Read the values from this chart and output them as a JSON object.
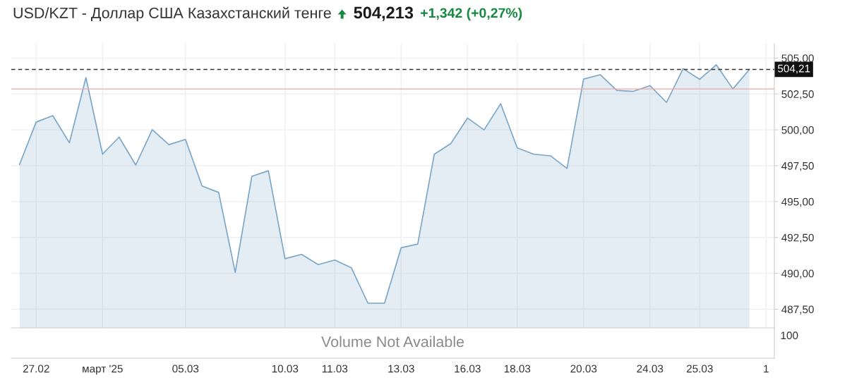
{
  "chart_data": [
    {
      "type": "area",
      "title": "USD/KZT - Доллар США Казахстанский тенге",
      "annotations": [
        "504,213",
        "+1,342 (+0,27%)"
      ],
      "categories": [
        null,
        "27.02",
        null,
        null,
        null,
        "март '25",
        null,
        null,
        null,
        null,
        "05.03",
        null,
        null,
        null,
        null,
        null,
        "10.03",
        null,
        null,
        "11.03",
        null,
        null,
        null,
        "13.03",
        null,
        null,
        null,
        "16.03",
        null,
        null,
        "18.03",
        null,
        null,
        null,
        "20.03",
        null,
        null,
        null,
        "24.03",
        null,
        null,
        "25.03",
        null,
        null,
        null,
        "1"
      ],
      "series": [
        {
          "color": "#7ba6c8",
          "values": [
            497.59,
            500.54,
            500.99,
            499.1,
            503.64,
            498.31,
            499.49,
            497.55,
            500.01,
            498.97,
            499.33,
            496.09,
            495.64,
            490.06,
            496.76,
            497.15,
            491.02,
            491.32,
            490.61,
            490.93,
            490.39,
            487.92,
            487.92,
            491.78,
            492.04,
            498.3,
            499.05,
            500.82,
            500.0,
            501.82,
            498.74,
            498.3,
            498.19,
            497.31,
            503.54,
            503.84,
            502.75,
            502.68,
            503.08,
            501.91,
            504.26,
            503.52,
            504.53,
            502.85,
            504.21,
            null
          ]
        }
      ],
      "ylim": [
        486.2,
        506.0
      ],
      "yticks": [
        {
          "value": 487.5,
          "label": "487,50"
        },
        {
          "value": 490,
          "label": "490,00"
        },
        {
          "value": 492.5,
          "label": "492,50"
        },
        {
          "value": 495,
          "label": "495,00"
        },
        {
          "value": 497.5,
          "label": "497,50"
        },
        {
          "value": 500,
          "label": "500,00"
        },
        {
          "value": 502.5,
          "label": "502,50"
        },
        {
          "value": 505,
          "label": "505,00"
        }
      ],
      "ref_lines": [
        {
          "axis": "y",
          "value": 504.21,
          "label": "504,21",
          "color": "#333333",
          "line_style": "dashed"
        },
        {
          "axis": "y",
          "value": 502.85,
          "color": "#f2a7a7",
          "line_style": "solid"
        }
      ],
      "grid": true
    },
    {
      "type": "other",
      "annotations": [
        "Volume Not Available",
        "100"
      ]
    }
  ]
}
